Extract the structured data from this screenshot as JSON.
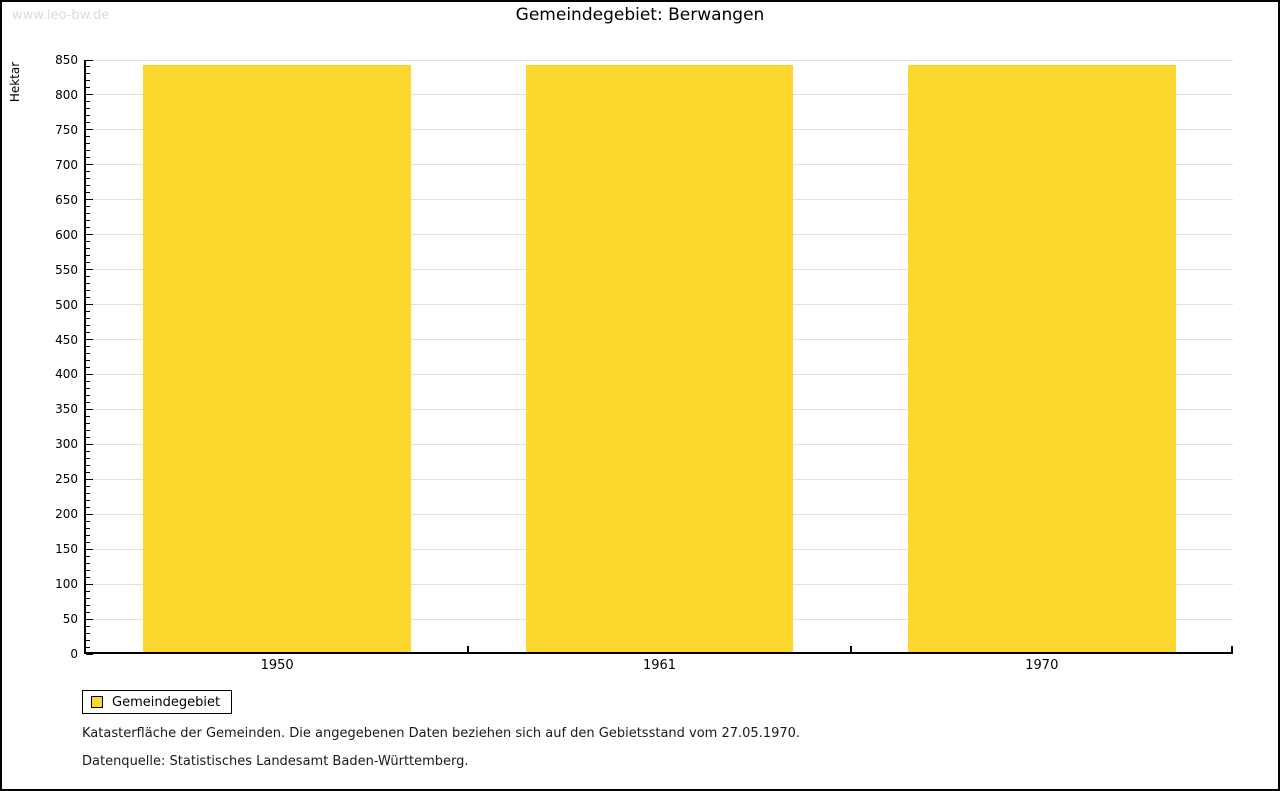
{
  "page": {
    "watermark": "www.leo-bw.de",
    "title": "Gemeindegebiet: Berwangen"
  },
  "chart_data": {
    "type": "bar",
    "title": "Gemeindegebiet: Berwangen",
    "categories": [
      "1950",
      "1961",
      "1970"
    ],
    "series": [
      {
        "name": "Gemeindegebiet",
        "values": [
          843,
          843,
          843
        ]
      }
    ],
    "xlabel": "",
    "ylabel": "Hektar",
    "ylim": [
      0,
      850
    ],
    "ytick_step": 50,
    "minor_tick_step": 10,
    "grid": true,
    "legend_position": "bottom-left",
    "colors": {
      "bar": "#fcd72d",
      "grid": "#e0e0e0",
      "axis": "#000000"
    }
  },
  "legend": {
    "items": [
      {
        "label": "Gemeindegebiet",
        "color": "#fcd72d"
      }
    ]
  },
  "footer": {
    "line1": "Katasterfläche der Gemeinden. Die angegebenen Daten beziehen sich auf den Gebietsstand vom 27.05.1970.",
    "line2": "Datenquelle: Statistisches Landesamt Baden-Württemberg."
  }
}
